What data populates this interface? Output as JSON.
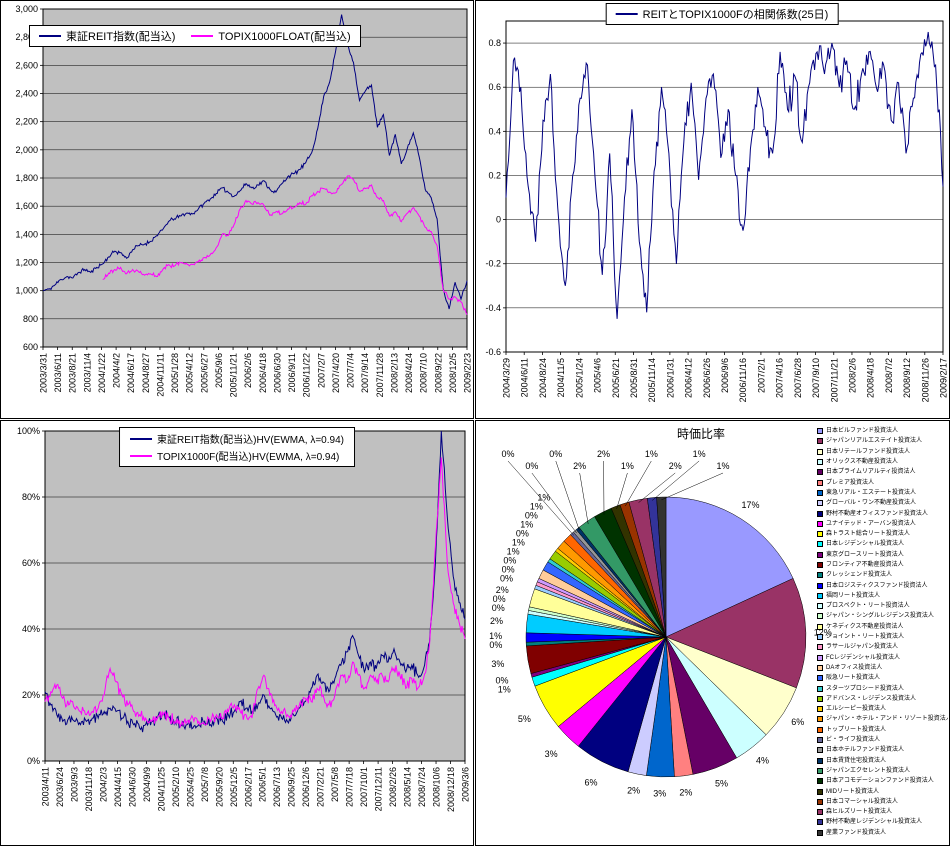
{
  "app": {
    "type": "excel-chart-sheet",
    "background": "#FFFFFF"
  },
  "colors": {
    "navy": "#000080",
    "magenta": "#FF00FF",
    "plot_gray": "#C0C0C0",
    "grid": "#000000"
  },
  "chart_data": [
    {
      "type": "line",
      "position": "top-left",
      "plot_bg": "#C0C0C0",
      "jitter": 16,
      "y_axis": {
        "min": 600,
        "max": 3000,
        "step": 200,
        "format": "comma"
      },
      "x_ticks": [
        "2003/3/31",
        "2003/6/11",
        "2003/8/21",
        "2003/11/4",
        "2004/1/22",
        "2004/4/2",
        "2004/6/17",
        "2004/8/27",
        "2004/11/11",
        "2005/1/28",
        "2005/4/12",
        "2005/6/27",
        "2005/9/6",
        "2005/11/21",
        "2006/2/6",
        "2006/4/18",
        "2006/6/30",
        "2006/9/11",
        "2006/11/22",
        "2007/2/7",
        "2007/4/20",
        "2007/7/4",
        "2007/9/14",
        "2007/11/28",
        "2008/2/13",
        "2008/4/24",
        "2008/7/10",
        "2008/9/22",
        "2008/12/5",
        "2009/2/23"
      ],
      "series": [
        {
          "name": "東証REIT指数(配当込)",
          "color": "#000080",
          "values": [
            1000,
            1010,
            1040,
            1080,
            1100,
            1090,
            1130,
            1150,
            1130,
            1165,
            1190,
            1240,
            1280,
            1270,
            1230,
            1290,
            1320,
            1330,
            1350,
            1390,
            1430,
            1490,
            1510,
            1530,
            1550,
            1545,
            1580,
            1620,
            1650,
            1690,
            1730,
            1700,
            1670,
            1710,
            1760,
            1730,
            1750,
            1780,
            1720,
            1700,
            1760,
            1810,
            1830,
            1860,
            1910,
            1980,
            2150,
            2380,
            2480,
            2700,
            2960,
            2750,
            2620,
            2350,
            2420,
            2460,
            2160,
            2250,
            1960,
            2110,
            1900,
            2010,
            2120,
            1950,
            1720,
            1660,
            1510,
            1020,
            870,
            1060,
            940,
            1070
          ]
        },
        {
          "name": "TOPIX1000FLOAT(配当込)",
          "color": "#FF00FF",
          "values": [
            null,
            null,
            null,
            null,
            null,
            null,
            null,
            null,
            null,
            null,
            1080,
            1125,
            1150,
            1165,
            1120,
            1150,
            1135,
            1110,
            1120,
            1100,
            1145,
            1185,
            1175,
            1200,
            1195,
            1185,
            1205,
            1235,
            1255,
            1305,
            1400,
            1390,
            1470,
            1580,
            1640,
            1615,
            1625,
            1605,
            1535,
            1560,
            1545,
            1580,
            1590,
            1625,
            1615,
            1675,
            1705,
            1725,
            1700,
            1695,
            1755,
            1815,
            1790,
            1705,
            1725,
            1750,
            1660,
            1640,
            1530,
            1560,
            1490,
            1550,
            1590,
            1530,
            1450,
            1420,
            1320,
            1010,
            940,
            955,
            920,
            830
          ]
        }
      ]
    },
    {
      "type": "line",
      "position": "top-right",
      "plot_bg": "#FFFFFF",
      "jitter": 0.085,
      "y_axis": {
        "min": -0.6,
        "max": 0.9,
        "step": 0.2,
        "label_max": 0.8,
        "format": "decimal"
      },
      "x_ticks": [
        "2004/3/29",
        "2004/6/11",
        "2004/8/24",
        "2004/11/5",
        "2005/1/24",
        "2005/4/6",
        "2005/6/21",
        "2005/8/31",
        "2005/11/14",
        "2006/1/31",
        "2006/4/12",
        "2006/6/26",
        "2006/9/6",
        "2006/11/16",
        "2007/2/1",
        "2007/4/16",
        "2007/6/28",
        "2007/9/10",
        "2007/11/21",
        "2008/2/6",
        "2008/4/18",
        "2008/7/2",
        "2008/9/12",
        "2008/11/26",
        "2009/2/17"
      ],
      "series": [
        {
          "name": "REITとTOPIX1000Fの相関係数(25日)",
          "color": "#000080",
          "values": [
            0.1,
            0.72,
            0.6,
            0.15,
            -0.1,
            0.45,
            0.66,
            0.05,
            -0.3,
            0.2,
            0.55,
            0.7,
            0.2,
            -0.25,
            0.3,
            -0.45,
            0.1,
            0.5,
            -0.1,
            -0.42,
            0.22,
            0.6,
            0.3,
            -0.2,
            0.35,
            0.62,
            0.18,
            0.55,
            0.66,
            0.28,
            0.5,
            0.2,
            -0.05,
            0.32,
            0.6,
            0.42,
            0.3,
            0.76,
            0.5,
            0.65,
            0.35,
            0.62,
            0.76,
            0.66,
            0.8,
            0.6,
            0.72,
            0.5,
            0.66,
            0.76,
            0.6,
            0.7,
            0.45,
            0.62,
            0.3,
            0.55,
            0.75,
            0.85,
            0.7,
            0.15
          ]
        }
      ]
    },
    {
      "type": "line",
      "position": "bottom-left",
      "plot_bg": "#C0C0C0",
      "jitter": 2,
      "y_axis": {
        "min": 0,
        "max": 100,
        "step": 20,
        "format": "percent"
      },
      "x_ticks": [
        "2003/4/11",
        "2003/6/24",
        "2003/9/3",
        "2003/11/18",
        "2004/2/3",
        "2004/4/15",
        "2004/6/30",
        "2004/9/9",
        "2004/11/25",
        "2005/2/10",
        "2005/4/25",
        "2005/7/8",
        "2005/9/20",
        "2005/12/5",
        "2006/2/17",
        "2006/5/1",
        "2006/7/13",
        "2006/9/25",
        "2006/12/6",
        "2007/2/21",
        "2007/5/8",
        "2007/7/18",
        "2007/10/1",
        "2007/12/11",
        "2008/2/26",
        "2008/5/14",
        "2008/7/24",
        "2008/10/6",
        "2008/12/18",
        "2009/3/6"
      ],
      "series": [
        {
          "name": "東証REIT指数(配当込)HV(EWMA, λ=0.94)",
          "color": "#000080",
          "values": [
            21,
            17,
            14,
            12,
            13,
            12,
            11,
            12,
            13,
            13,
            15,
            16,
            15,
            13,
            12,
            11,
            10,
            11,
            12,
            13,
            14,
            13,
            12,
            11,
            11,
            10,
            11,
            12,
            11,
            13,
            12,
            14,
            15,
            18,
            16,
            15,
            17,
            20,
            16,
            14,
            13,
            12,
            14,
            16,
            18,
            22,
            26,
            24,
            21,
            25,
            29,
            33,
            38,
            32,
            27,
            30,
            28,
            32,
            30,
            34,
            30,
            27,
            29,
            26,
            28,
            36,
            60,
            100,
            74,
            56,
            48,
            43
          ]
        },
        {
          "name": "TOPIX1000F(配当込)HV(EWMA, λ=0.94)",
          "color": "#FF00FF",
          "values": [
            18,
            21,
            23,
            19,
            17,
            16,
            15,
            14,
            15,
            16,
            20,
            28,
            24,
            20,
            17,
            15,
            14,
            13,
            12,
            13,
            14,
            13,
            12,
            11,
            12,
            13,
            12,
            11,
            12,
            14,
            13,
            15,
            17,
            15,
            14,
            13,
            22,
            26,
            20,
            17,
            15,
            14,
            15,
            17,
            19,
            18,
            22,
            20,
            17,
            20,
            26,
            24,
            30,
            26,
            22,
            26,
            24,
            26,
            24,
            28,
            26,
            22,
            25,
            22,
            25,
            35,
            65,
            92,
            60,
            48,
            42,
            37
          ]
        }
      ]
    },
    {
      "type": "pie",
      "position": "bottom-right",
      "title": "時価比率",
      "slices": [
        {
          "name": "日本ビルファンド投資法人",
          "pct": 17,
          "color": "#9999FF"
        },
        {
          "name": "ジャパンリアルエステイト投資法人",
          "pct": 12,
          "color": "#993366"
        },
        {
          "name": "日本リテールファンド投資法人",
          "pct": 6,
          "color": "#FFFFCC"
        },
        {
          "name": "オリックス不動産投資法人",
          "pct": 4,
          "color": "#CCFFFF"
        },
        {
          "name": "日本プライムリアルティ投資法人",
          "pct": 5,
          "color": "#660066"
        },
        {
          "name": "プレミア投資法人",
          "pct": 2,
          "color": "#FF8080"
        },
        {
          "name": "東急リアル・エステート投資法人",
          "pct": 3,
          "color": "#0066CC"
        },
        {
          "name": "グローバル・ワン不動産投資法人",
          "pct": 2,
          "color": "#CCCCFF"
        },
        {
          "name": "野村不動産オフィスファンド投資法人",
          "pct": 6,
          "color": "#000080"
        },
        {
          "name": "ユナイテッド・アーバン投資法人",
          "pct": 3,
          "color": "#FF00FF"
        },
        {
          "name": "森トラスト総合リート投資法人",
          "pct": 5,
          "color": "#FFFF00"
        },
        {
          "name": "日本レジデンシャル投資法人",
          "pct": 1,
          "color": "#00FFFF"
        },
        {
          "name": "東京グロースリート投資法人",
          "pct": 0.4,
          "color": "#800080"
        },
        {
          "name": "フロンティア不動産投資法人",
          "pct": 3,
          "color": "#800000"
        },
        {
          "name": "クレッシェンド投資法人",
          "pct": 0.4,
          "color": "#008080"
        },
        {
          "name": "日本ロジスティクスファンド投資法人",
          "pct": 1,
          "color": "#0000FF"
        },
        {
          "name": "福岡リート投資法人",
          "pct": 2,
          "color": "#00CCFF"
        },
        {
          "name": "プロスペクト・リート投資法人",
          "pct": 0.4,
          "color": "#CCFFFF"
        },
        {
          "name": "ジャパン・シングルレジデンス投資法人",
          "pct": 0.4,
          "color": "#CCFFCC"
        },
        {
          "name": "ケネディクス不動産投資法人",
          "pct": 2,
          "color": "#FFFF99"
        },
        {
          "name": "ジョイント・リート投資法人",
          "pct": 0.4,
          "color": "#99CCFF"
        },
        {
          "name": "ラサールジャパン投資法人",
          "pct": 0.4,
          "color": "#FF99CC"
        },
        {
          "name": "FCレジデンシャル投資法人",
          "pct": 0.4,
          "color": "#CC99FF"
        },
        {
          "name": "DAオフィス投資法人",
          "pct": 1,
          "color": "#FFCC99"
        },
        {
          "name": "阪急リート投資法人",
          "pct": 1,
          "color": "#3366FF"
        },
        {
          "name": "スターツプロシード投資法人",
          "pct": 0.4,
          "color": "#33CCCC"
        },
        {
          "name": "アドバンス・レジデンス投資法人",
          "pct": 1,
          "color": "#99CC00"
        },
        {
          "name": "エルシーピー投資法人",
          "pct": 0.4,
          "color": "#FFCC00"
        },
        {
          "name": "ジャパン・ホテル・アンド・リゾート投資法人",
          "pct": 1,
          "color": "#FF9900"
        },
        {
          "name": "トップリート投資法人",
          "pct": 1,
          "color": "#FF6600"
        },
        {
          "name": "ビ・ライフ投資法人",
          "pct": 0.4,
          "color": "#666699"
        },
        {
          "name": "日本ホテルファンド投資法人",
          "pct": 0.4,
          "color": "#969696"
        },
        {
          "name": "日本賃貸住宅投資法人",
          "pct": 0.4,
          "color": "#003366"
        },
        {
          "name": "ジャパンエクセレント投資法人",
          "pct": 2,
          "color": "#339966"
        },
        {
          "name": "日本アコモデーションファンド投資法人",
          "pct": 2,
          "color": "#003300"
        },
        {
          "name": "MIDリート投資法人",
          "pct": 1,
          "color": "#333300"
        },
        {
          "name": "日本コマーシャル投資法人",
          "pct": 1,
          "color": "#993300"
        },
        {
          "name": "森ヒルズリート投資法人",
          "pct": 2,
          "color": "#993366"
        },
        {
          "name": "野村不動産レジデンシャル投資法人",
          "pct": 1,
          "color": "#333399"
        },
        {
          "name": "産業ファンド投資法人",
          "pct": 1,
          "color": "#333333"
        }
      ]
    }
  ]
}
